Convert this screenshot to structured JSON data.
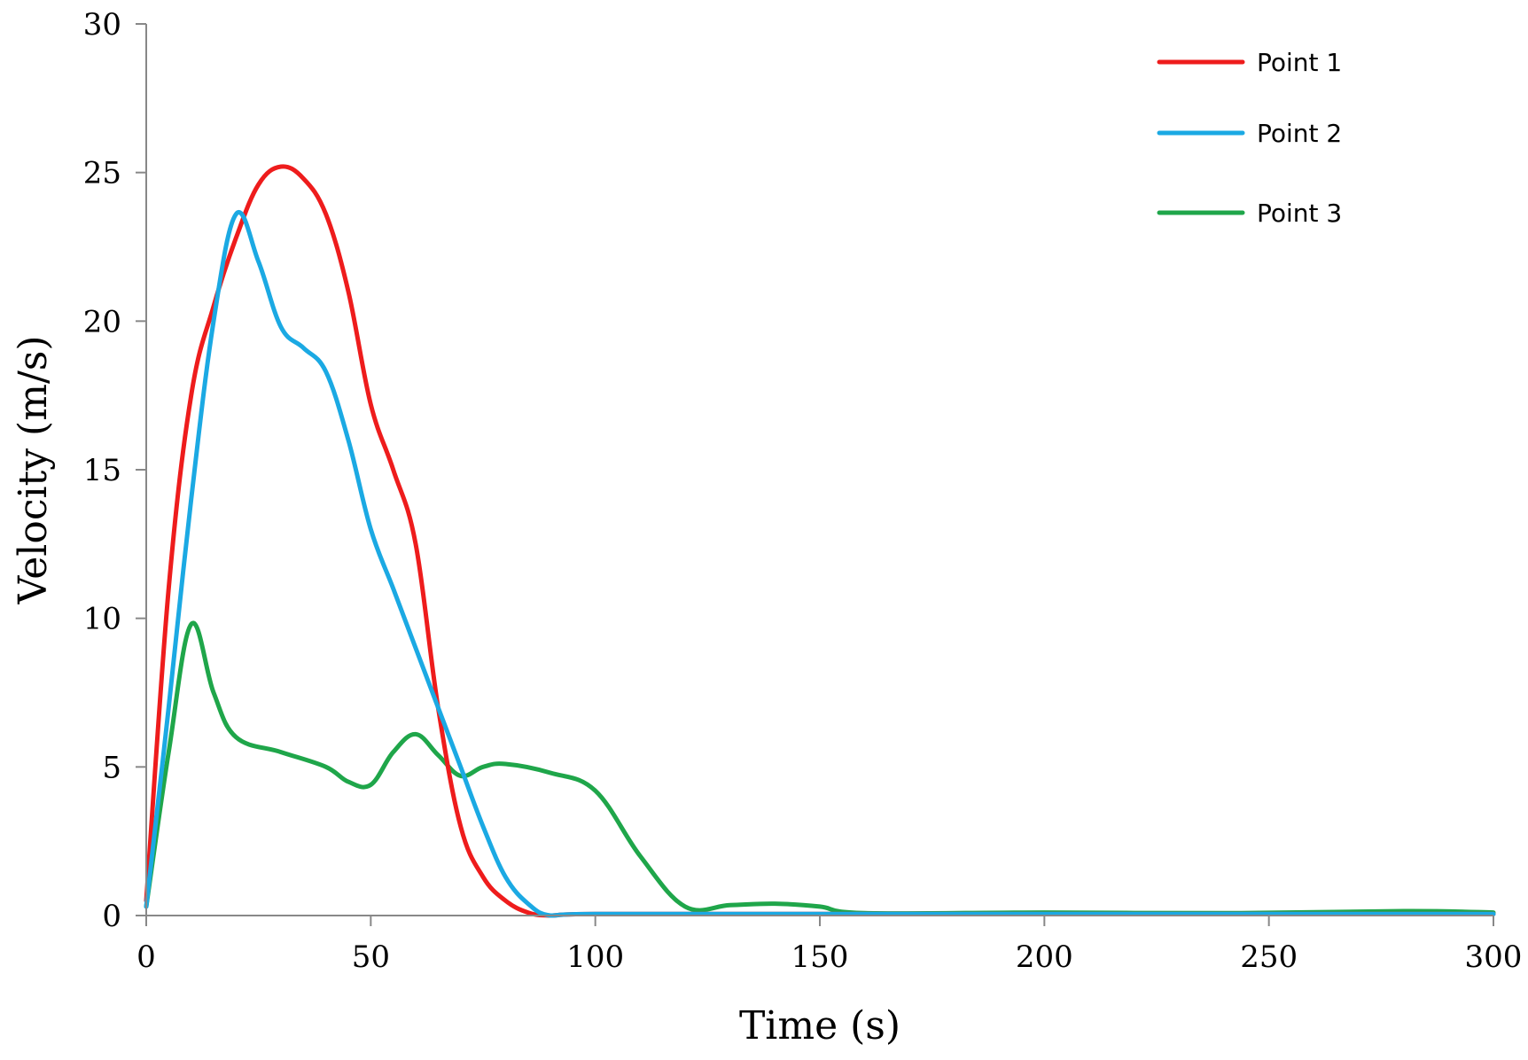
{
  "chart_data": {
    "type": "line",
    "title": "",
    "xlabel": "Time (s)",
    "ylabel": "Velocity (m/s)",
    "xlim": [
      0,
      300
    ],
    "ylim": [
      0,
      30
    ],
    "xticks": [
      0,
      50,
      100,
      150,
      200,
      250,
      300
    ],
    "yticks": [
      0,
      5,
      10,
      15,
      20,
      25,
      30
    ],
    "grid": false,
    "legend_position": "top-right",
    "series": [
      {
        "name": "Point 1",
        "color": "#ee1c1c",
        "x": [
          0,
          5,
          10,
          15,
          20,
          25,
          30,
          35,
          40,
          45,
          50,
          55,
          60,
          65,
          70,
          75,
          80,
          85,
          90,
          100,
          150,
          200,
          250,
          300
        ],
        "y": [
          0.5,
          11,
          17.5,
          20.5,
          22.8,
          24.6,
          25.2,
          24.8,
          23.6,
          21.0,
          17.2,
          15.0,
          12.5,
          7.0,
          3.0,
          1.3,
          0.5,
          0.1,
          0.0,
          0.05,
          0.05,
          0.05,
          0.05,
          0.05
        ]
      },
      {
        "name": "Point 2",
        "color": "#1ba9e3",
        "x": [
          0,
          5,
          10,
          15,
          20,
          25,
          30,
          35,
          40,
          45,
          50,
          55,
          60,
          65,
          70,
          75,
          80,
          85,
          90,
          100,
          150,
          200,
          250,
          300
        ],
        "y": [
          0.3,
          7,
          14,
          20,
          23.6,
          22.0,
          19.8,
          19.1,
          18.3,
          16.0,
          13.0,
          11.0,
          9.0,
          7.0,
          5.0,
          3.0,
          1.3,
          0.4,
          0.0,
          0.05,
          0.05,
          0.05,
          0.05,
          0.05
        ]
      },
      {
        "name": "Point 3",
        "color": "#1fa64a",
        "x": [
          0,
          5,
          10,
          15,
          20,
          30,
          40,
          45,
          50,
          55,
          60,
          65,
          70,
          75,
          80,
          90,
          100,
          110,
          120,
          130,
          140,
          150,
          160,
          200,
          240,
          280,
          300
        ],
        "y": [
          0.3,
          5.5,
          9.8,
          7.5,
          6.0,
          5.5,
          5.0,
          4.5,
          4.4,
          5.5,
          6.1,
          5.4,
          4.7,
          5.0,
          5.1,
          4.8,
          4.2,
          2.0,
          0.3,
          0.35,
          0.4,
          0.3,
          0.08,
          0.1,
          0.08,
          0.15,
          0.1
        ]
      }
    ]
  }
}
